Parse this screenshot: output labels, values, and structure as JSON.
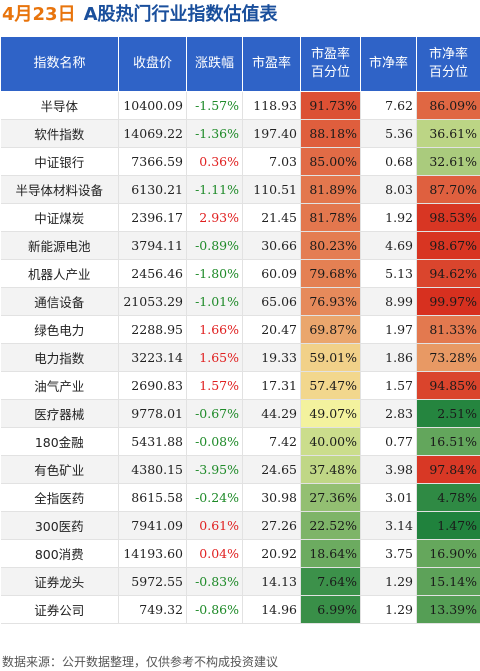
{
  "title": {
    "date": "4月23日",
    "main": "A股热门行业指数估值表"
  },
  "headers": {
    "name": "指数名称",
    "close": "收盘价",
    "change": "涨跌幅",
    "pe": "市盈率",
    "pe_pct_1": "市盈率",
    "pe_pct_2": "百分位",
    "pb": "市净率",
    "pb_pct_1": "市净率",
    "pb_pct_2": "百分位"
  },
  "rows": [
    {
      "name": "半导体",
      "close": "10400.09",
      "change": "-1.57%",
      "pe": "118.93",
      "pe_pct": "91.73%",
      "pb": "7.62",
      "pb_pct": "86.09%"
    },
    {
      "name": "软件指数",
      "close": "14069.22",
      "change": "-1.36%",
      "pe": "197.40",
      "pe_pct": "88.18%",
      "pb": "5.36",
      "pb_pct": "36.61%"
    },
    {
      "name": "中证银行",
      "close": "7366.59",
      "change": "0.36%",
      "pe": "7.03",
      "pe_pct": "85.00%",
      "pb": "0.68",
      "pb_pct": "32.61%"
    },
    {
      "name": "半导体材料设备",
      "close": "6130.21",
      "change": "-1.11%",
      "pe": "110.51",
      "pe_pct": "81.89%",
      "pb": "8.03",
      "pb_pct": "87.70%"
    },
    {
      "name": "中证煤炭",
      "close": "2396.17",
      "change": "2.93%",
      "pe": "21.45",
      "pe_pct": "81.78%",
      "pb": "1.92",
      "pb_pct": "98.53%"
    },
    {
      "name": "新能源电池",
      "close": "3794.11",
      "change": "-0.89%",
      "pe": "30.66",
      "pe_pct": "80.23%",
      "pb": "4.69",
      "pb_pct": "98.67%"
    },
    {
      "name": "机器人产业",
      "close": "2456.46",
      "change": "-1.80%",
      "pe": "60.09",
      "pe_pct": "79.68%",
      "pb": "5.13",
      "pb_pct": "94.62%"
    },
    {
      "name": "通信设备",
      "close": "21053.29",
      "change": "-1.01%",
      "pe": "65.06",
      "pe_pct": "76.93%",
      "pb": "8.99",
      "pb_pct": "99.97%"
    },
    {
      "name": "绿色电力",
      "close": "2288.95",
      "change": "1.66%",
      "pe": "20.47",
      "pe_pct": "69.87%",
      "pb": "1.97",
      "pb_pct": "81.33%"
    },
    {
      "name": "电力指数",
      "close": "3223.14",
      "change": "1.65%",
      "pe": "19.33",
      "pe_pct": "59.01%",
      "pb": "1.86",
      "pb_pct": "73.28%"
    },
    {
      "name": "油气产业",
      "close": "2690.83",
      "change": "1.57%",
      "pe": "17.31",
      "pe_pct": "57.47%",
      "pb": "1.57",
      "pb_pct": "94.85%"
    },
    {
      "name": "医疗器械",
      "close": "9778.01",
      "change": "-0.67%",
      "pe": "44.29",
      "pe_pct": "49.07%",
      "pb": "2.83",
      "pb_pct": "2.51%"
    },
    {
      "name": "180金融",
      "close": "5431.88",
      "change": "-0.08%",
      "pe": "7.42",
      "pe_pct": "40.00%",
      "pb": "0.77",
      "pb_pct": "16.51%"
    },
    {
      "name": "有色矿业",
      "close": "4380.15",
      "change": "-3.95%",
      "pe": "24.65",
      "pe_pct": "37.48%",
      "pb": "3.98",
      "pb_pct": "97.84%"
    },
    {
      "name": "全指医药",
      "close": "8615.58",
      "change": "-0.24%",
      "pe": "30.98",
      "pe_pct": "27.36%",
      "pb": "3.01",
      "pb_pct": "4.78%"
    },
    {
      "name": "300医药",
      "close": "7941.09",
      "change": "0.61%",
      "pe": "27.26",
      "pe_pct": "22.52%",
      "pb": "3.14",
      "pb_pct": "1.47%"
    },
    {
      "name": "800消费",
      "close": "14193.60",
      "change": "0.04%",
      "pe": "20.92",
      "pe_pct": "18.64%",
      "pb": "3.75",
      "pb_pct": "16.90%"
    },
    {
      "name": "证券龙头",
      "close": "5972.55",
      "change": "-0.83%",
      "pe": "14.13",
      "pe_pct": "7.64%",
      "pb": "1.29",
      "pb_pct": "15.14%"
    },
    {
      "name": "证券公司",
      "close": "749.32",
      "change": "-0.86%",
      "pe": "14.96",
      "pe_pct": "6.99%",
      "pb": "1.29",
      "pb_pct": "13.39%"
    }
  ],
  "colors": {
    "header_bg": "#2f63c7",
    "title_date": "#e8740c",
    "title_main": "#1a4f9c",
    "up": "#e02020",
    "down": "#1e8a28",
    "heat_high": "#d7301f",
    "heat_mid": "#f7f4a0",
    "heat_low": "#1a7f3a"
  },
  "footer": "数据来源：公开数据整理，仅供参考不构成投资建议"
}
